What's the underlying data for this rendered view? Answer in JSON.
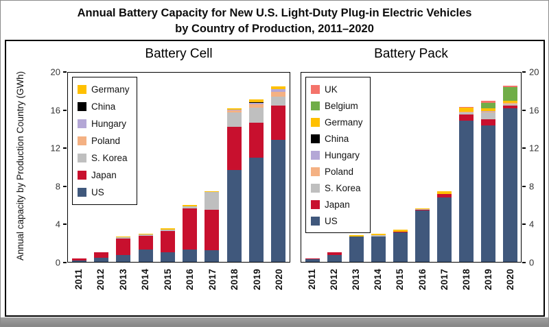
{
  "title": {
    "line1": "Annual Battery Capacity for New U.S. Light-Duty Plug-in Electric Vehicles",
    "line2": "by Country of Production, 2011–2020"
  },
  "y_axis_label": "Annual capacity by Production Country (GWh)",
  "colors": {
    "US": "#40587C",
    "Japan": "#C8102E",
    "S. Korea": "#BFBFBF",
    "Poland": "#F4B183",
    "Hungary": "#B4A7D6",
    "China": "#000000",
    "Germany": "#FFC000",
    "Belgium": "#70AD47",
    "UK": "#F4736A"
  },
  "chart_data": [
    {
      "type": "bar",
      "stacked": true,
      "title": "Battery Cell",
      "categories": [
        "2011",
        "2012",
        "2013",
        "2014",
        "2015",
        "2016",
        "2017",
        "2018",
        "2019",
        "2020"
      ],
      "ylim": [
        0,
        20
      ],
      "yticks": [
        0,
        4,
        8,
        12,
        16,
        20
      ],
      "ylabel": "Annual capacity by Production Country (GWh)",
      "legend_position": "upper-left-inside",
      "legend_order_top_to_bottom": [
        "Germany",
        "China",
        "Hungary",
        "Poland",
        "S. Korea",
        "Japan",
        "US"
      ],
      "series": [
        {
          "name": "US",
          "values": [
            0.15,
            0.4,
            0.7,
            1.3,
            1.0,
            1.3,
            1.2,
            9.7,
            11.0,
            12.9
          ]
        },
        {
          "name": "Japan",
          "values": [
            0.2,
            0.6,
            1.75,
            1.45,
            2.25,
            4.35,
            4.3,
            4.6,
            3.7,
            3.6
          ]
        },
        {
          "name": "S. Korea",
          "values": [
            0,
            0,
            0.15,
            0.15,
            0.15,
            0.25,
            1.9,
            1.5,
            1.6,
            1.0
          ]
        },
        {
          "name": "Poland",
          "values": [
            0,
            0,
            0,
            0,
            0,
            0,
            0,
            0.2,
            0.35,
            0.45
          ]
        },
        {
          "name": "Hungary",
          "values": [
            0,
            0,
            0,
            0,
            0,
            0,
            0,
            0.1,
            0.2,
            0.3
          ]
        },
        {
          "name": "China",
          "values": [
            0,
            0,
            0,
            0,
            0,
            0,
            0,
            0,
            0.05,
            0.05
          ]
        },
        {
          "name": "Germany",
          "values": [
            0,
            0,
            0.12,
            0.1,
            0.12,
            0.1,
            0.1,
            0.12,
            0.25,
            0.25
          ]
        }
      ]
    },
    {
      "type": "bar",
      "stacked": true,
      "title": "Battery Pack",
      "categories": [
        "2011",
        "2012",
        "2013",
        "2014",
        "2015",
        "2016",
        "2017",
        "2018",
        "2019",
        "2020"
      ],
      "ylim": [
        0,
        20
      ],
      "yticks": [
        0,
        4,
        8,
        12,
        16,
        20
      ],
      "legend_position": "upper-left-inside",
      "legend_order_top_to_bottom": [
        "UK",
        "Belgium",
        "Germany",
        "China",
        "Hungary",
        "Poland",
        "S. Korea",
        "Japan",
        "US"
      ],
      "series": [
        {
          "name": "US",
          "values": [
            0.3,
            0.75,
            2.65,
            2.7,
            3.15,
            5.45,
            6.8,
            14.9,
            14.4,
            16.2
          ]
        },
        {
          "name": "Japan",
          "values": [
            0.1,
            0.25,
            0.05,
            0,
            0.05,
            0.05,
            0.35,
            0.7,
            0.7,
            0.3
          ]
        },
        {
          "name": "S. Korea",
          "values": [
            0,
            0,
            0,
            0.1,
            0,
            0.05,
            0,
            0.2,
            0.7,
            0.2
          ]
        },
        {
          "name": "Poland",
          "values": [
            0,
            0,
            0,
            0,
            0,
            0,
            0,
            0.05,
            0.1,
            0.1
          ]
        },
        {
          "name": "Hungary",
          "values": [
            0,
            0,
            0,
            0,
            0,
            0,
            0,
            0.05,
            0.05,
            0.05
          ]
        },
        {
          "name": "China",
          "values": [
            0,
            0,
            0,
            0,
            0,
            0,
            0,
            0,
            0,
            0
          ]
        },
        {
          "name": "Germany",
          "values": [
            0,
            0,
            0.1,
            0.2,
            0.2,
            0.1,
            0.35,
            0.4,
            0.3,
            0.2
          ]
        },
        {
          "name": "Belgium",
          "values": [
            0,
            0,
            0,
            0,
            0,
            0,
            0,
            0,
            0.6,
            1.45
          ]
        },
        {
          "name": "UK",
          "values": [
            0,
            0,
            0,
            0,
            0,
            0,
            0,
            0.1,
            0.2,
            0.15
          ]
        }
      ]
    }
  ]
}
